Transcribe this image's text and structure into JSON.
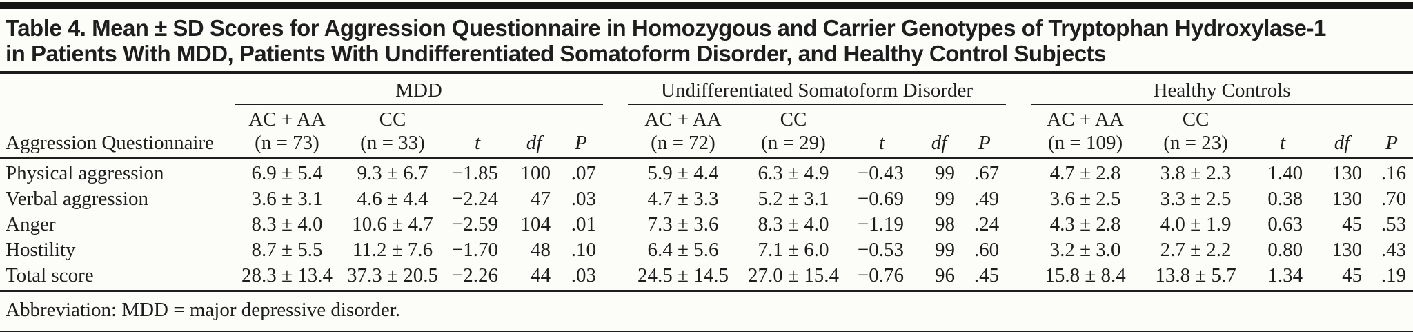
{
  "title": {
    "line1": "Table 4. Mean ± SD Scores for Aggression Questionnaire in Homozygous and Carrier Genotypes of Tryptophan Hydroxylase-1",
    "line2": "in Patients With MDD, Patients With Undifferentiated Somatoform Disorder, and Healthy Control Subjects"
  },
  "table": {
    "stub_header": "Aggression Questionnaire",
    "groups": [
      {
        "label": "MDD",
        "col1_line1": "AC + AA",
        "col1_line2": "(n = 73)",
        "col2_line1": "CC",
        "col2_line2": "(n = 33)",
        "t": "t",
        "df": "df",
        "p": "P"
      },
      {
        "label": "Undifferentiated Somatoform Disorder",
        "col1_line1": "AC + AA",
        "col1_line2": "(n = 72)",
        "col2_line1": "CC",
        "col2_line2": "(n = 29)",
        "t": "t",
        "df": "df",
        "p": "P"
      },
      {
        "label": "Healthy Controls",
        "col1_line1": "AC + AA",
        "col1_line2": "(n = 109)",
        "col2_line1": "CC",
        "col2_line2": "(n = 23)",
        "t": "t",
        "df": "df",
        "p": "P"
      }
    ],
    "rows": [
      {
        "label": "Physical aggression",
        "cells": [
          [
            "6.9 ± 5.4",
            "9.3 ± 6.7",
            "−1.85",
            "100",
            ".07"
          ],
          [
            "5.9 ± 4.4",
            "6.3 ± 4.9",
            "−0.43",
            "99",
            ".67"
          ],
          [
            "4.7 ± 2.8",
            "3.8 ± 2.3",
            "1.40",
            "130",
            ".16"
          ]
        ]
      },
      {
        "label": "Verbal aggression",
        "cells": [
          [
            "3.6 ± 3.1",
            "4.6 ± 4.4",
            "−2.24",
            "47",
            ".03"
          ],
          [
            "4.7 ± 3.3",
            "5.2 ± 3.1",
            "−0.69",
            "99",
            ".49"
          ],
          [
            "3.6 ± 2.5",
            "3.3 ± 2.5",
            "0.38",
            "130",
            ".70"
          ]
        ]
      },
      {
        "label": "Anger",
        "cells": [
          [
            "8.3 ± 4.0",
            "10.6 ± 4.7",
            "−2.59",
            "104",
            ".01"
          ],
          [
            "7.3 ± 3.6",
            "8.3 ± 4.0",
            "−1.19",
            "98",
            ".24"
          ],
          [
            "4.3 ± 2.8",
            "4.0 ± 1.9",
            "0.63",
            "45",
            ".53"
          ]
        ]
      },
      {
        "label": "Hostility",
        "cells": [
          [
            "8.7 ± 5.5",
            "11.2 ± 7.6",
            "−1.70",
            "48",
            ".10"
          ],
          [
            "6.4 ± 5.6",
            "7.1 ± 6.0",
            "−0.53",
            "99",
            ".60"
          ],
          [
            "3.2 ± 3.0",
            "2.7 ± 2.2",
            "0.80",
            "130",
            ".43"
          ]
        ]
      },
      {
        "label": "Total score",
        "cells": [
          [
            "28.3 ± 13.4",
            "37.3 ± 20.5",
            "−2.26",
            "44",
            ".03"
          ],
          [
            "24.5 ± 14.5",
            "27.0 ± 15.4",
            "−0.76",
            "96",
            ".45"
          ],
          [
            "15.8 ± 8.4",
            "13.8 ± 5.7",
            "1.34",
            "45",
            ".19"
          ]
        ]
      }
    ]
  },
  "footnote": "Abbreviation: MDD = major depressive disorder.",
  "colors": {
    "text": "#1e1e1e",
    "rule": "#1e1e1e",
    "topbar": "#141414",
    "background": "#fcfcf9"
  }
}
